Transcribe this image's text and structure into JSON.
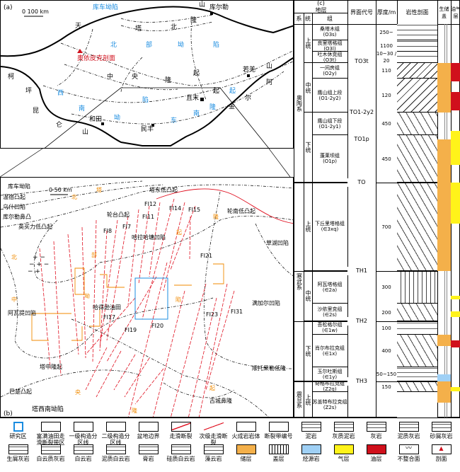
{
  "panel_a": {
    "label": "(a)",
    "scale": "0   100 km",
    "labels_black": [
      "天",
      "山",
      "库尔勒",
      "且末",
      "若羌",
      "和田",
      "民丰",
      "柯",
      "坪",
      "昆",
      "仑",
      "山",
      "阿",
      "尔",
      "金",
      "山"
    ],
    "labels_blue": [
      "库车坳陷",
      "北",
      "部",
      "坳",
      "陷",
      "塔",
      "北",
      "隆",
      "起",
      "中",
      "央",
      "隆",
      "起",
      "西",
      "南",
      "坳",
      "陷",
      "东",
      "南",
      "隆",
      "起"
    ],
    "outcrop": "奥依皮克剖面"
  },
  "panel_b": {
    "label": "(b)",
    "scale": "0   50 km",
    "regions": [
      "温宿凸起",
      "乌什凹陷",
      "阿瓦提凹陷",
      "满加尔凹陷",
      "轮台凸起",
      "英买力低凸起",
      "哈拉哈塘凹陷",
      "轮南低凸起",
      "草湖凹陷",
      "塔中隆起",
      "顺托果勒低隆",
      "古城鼻隆",
      "塔东低凸起",
      "巴楚凸起",
      "塔西南坳陷",
      "库尔勒鼻凸",
      "库车坳陷",
      "哈得逊油田"
    ],
    "orange_chars": [
      "塔",
      "北",
      "隆",
      "起",
      "北",
      "部",
      "坳",
      "陷",
      "中",
      "央",
      "隆",
      "起"
    ],
    "faults": [
      "FI12",
      "FI14",
      "FI15",
      "FI11",
      "FI8",
      "FI7",
      "FI21",
      "FI17",
      "FI19",
      "FI20",
      "FI23",
      "FI31"
    ]
  },
  "column": {
    "label": "(c)",
    "headers": {
      "strata": "地层",
      "system": "系",
      "series": "统",
      "formation": "组",
      "interface": "界面代号",
      "thickness": "厚度/m",
      "lithology": "岩性剖面",
      "srs": "生储盖",
      "oil": "油气层"
    },
    "systems": [
      "奥陶系",
      "寒武系",
      "震旦系"
    ],
    "series": [
      "上统",
      "中统",
      "下统",
      "上统",
      "中统",
      "下统",
      "上统"
    ],
    "formations": [
      {
        "name": "桑塔木组",
        "code": "(O3s)",
        "thick": "250~"
      },
      {
        "name": "良里塔格组",
        "code": "(O3l)",
        "thick": "1100"
      },
      {
        "name": "吐木休克组",
        "code": "(O3t)",
        "thick": "10~30 / 20"
      },
      {
        "name": "一间房组",
        "code": "(O2y)",
        "thick": "110"
      },
      {
        "name": "鹰山组上段",
        "code": "(O1-2y2)",
        "thick": "120"
      },
      {
        "name": "鹰山组下段",
        "code": "(O1-2y1)",
        "thick": "450"
      },
      {
        "name": "蓬莱坝组",
        "code": "(O1p)",
        "thick": "450"
      },
      {
        "name": "下丘里塔格组",
        "code": "(∈3xq)",
        "thick": "700"
      },
      {
        "name": "阿瓦塔格组",
        "code": "(∈2a)",
        "thick": "300"
      },
      {
        "name": "沙依里克组",
        "code": "(∈2s)",
        "thick": "200"
      },
      {
        "name": "吾松格尔组",
        "code": "(∈1w)",
        "thick": "100"
      },
      {
        "name": "肖尔布拉克组",
        "code": "(∈1x)",
        "thick": "400"
      },
      {
        "name": "玉尔吐斯组",
        "code": "(∈1y)",
        "thick": "50~150"
      },
      {
        "name": "奇格布拉克组",
        "code": "(Z2q)",
        "thick": "150"
      },
      {
        "name": "苏盖特布拉克组",
        "code": "(Z2s)",
        "thick": ""
      }
    ],
    "interfaces": [
      "TO3t",
      "TO1-2y2",
      "TO1p",
      "TO",
      "TH1",
      "TH2",
      "TH3"
    ]
  },
  "legend": [
    "研究区",
    "富满油田走滑断裂带区",
    "一级构造分区线",
    "二级构造分区线",
    "盆地边界",
    "走滑断裂",
    "次级走滑断裂",
    "火成岩岩体",
    "断裂带编号",
    "泥岩",
    "灰质泥岩",
    "灰岩",
    "泥质灰岩",
    "砂屑灰岩",
    "生屑灰岩",
    "白云质灰岩",
    "白云岩",
    "泥质白云岩",
    "膏岩",
    "硅质白云岩",
    "藻云岩",
    "储层",
    "盖层",
    "烃源岩",
    "气层",
    "油层",
    "不整合面",
    "剖面"
  ],
  "colors": {
    "reservoir": "#f4b04a",
    "source": "#9fd0f5",
    "gas": "#fff31a",
    "oil": "#d0101c",
    "fault": "#e01020",
    "study_area": "#1a8ce0",
    "blue_text": "#1a8ce0",
    "orange_text": "#f08a00"
  }
}
